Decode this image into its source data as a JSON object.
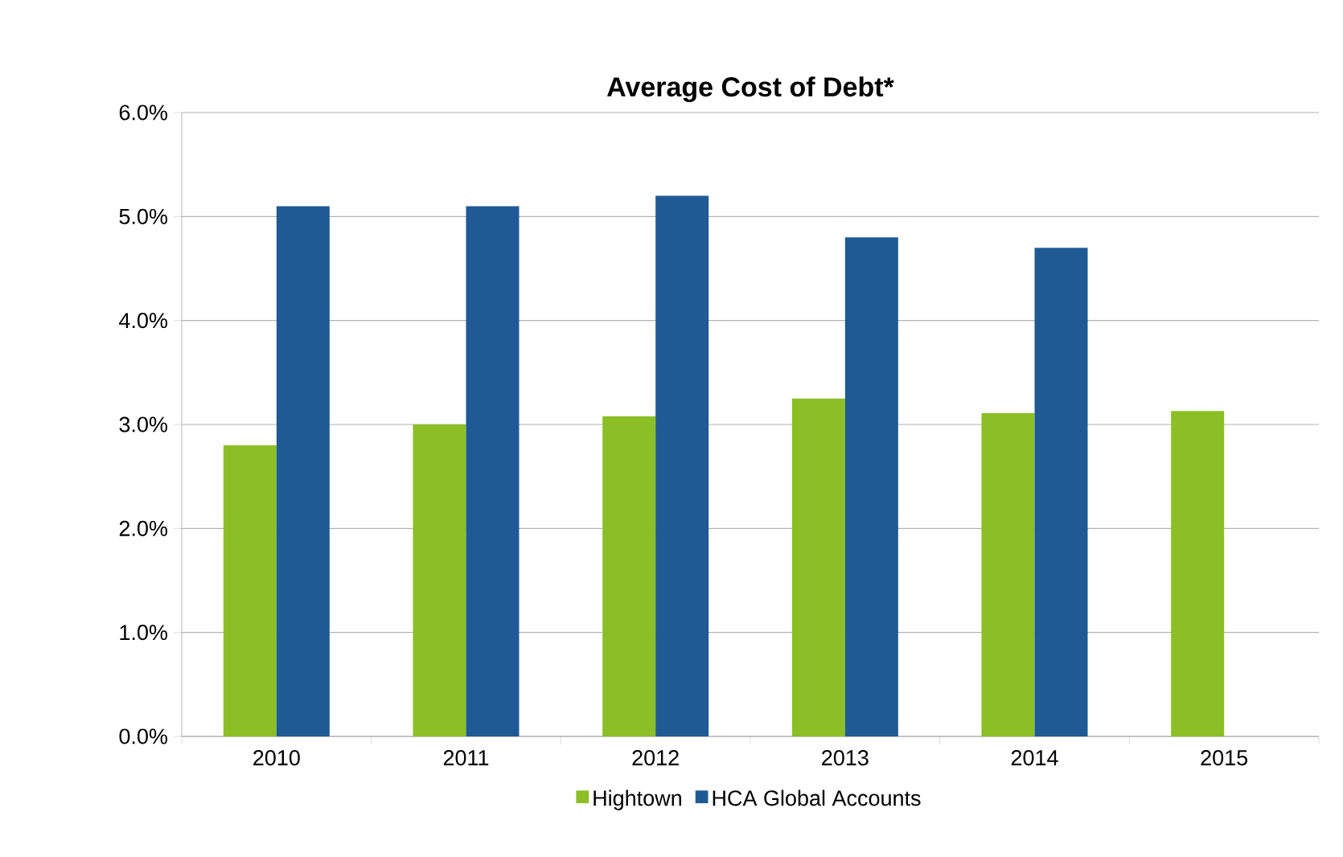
{
  "chart_data": {
    "type": "bar",
    "title": "Average Cost of Debt*",
    "categories": [
      "2010",
      "2011",
      "2012",
      "2013",
      "2014",
      "2015"
    ],
    "series": [
      {
        "name": "Hightown",
        "color": "#8cbf26",
        "values": [
          2.8,
          3.0,
          3.08,
          3.25,
          3.11,
          3.13
        ]
      },
      {
        "name": "HCA Global Accounts",
        "color": "#1f5a94",
        "values": [
          5.1,
          5.1,
          5.2,
          4.8,
          4.7,
          null
        ]
      }
    ],
    "ylim": [
      0,
      6
    ],
    "yticks": [
      {
        "value": 0,
        "label": "0.0%"
      },
      {
        "value": 1,
        "label": "1.0%"
      },
      {
        "value": 2,
        "label": "2.0%"
      },
      {
        "value": 3,
        "label": "3.0%"
      },
      {
        "value": 4,
        "label": "4.0%"
      },
      {
        "value": 5,
        "label": "5.0%"
      },
      {
        "value": 6,
        "label": "6.0%"
      }
    ],
    "grid": "y",
    "legend": "bottom"
  }
}
